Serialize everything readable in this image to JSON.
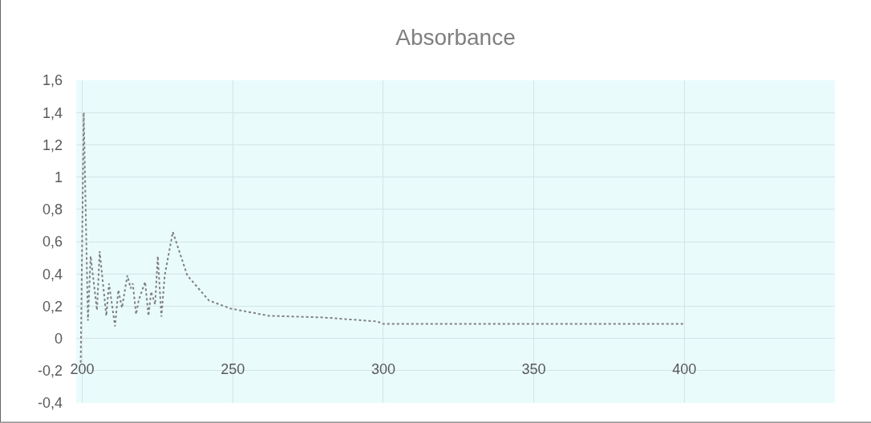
{
  "chart_data": {
    "type": "line",
    "title": "Absorbance",
    "x": [
      199.5,
      200.5,
      201.9,
      202.8,
      204.9,
      205.8,
      208,
      208.9,
      210.9,
      212,
      213.2,
      215,
      216.1,
      216.8,
      217.9,
      218.8,
      220.9,
      222,
      222.9,
      224.2,
      225.1,
      226.3,
      227.4,
      230.1,
      234.9,
      242.1,
      249.3,
      262,
      280,
      298,
      300,
      400
    ],
    "series": [
      {
        "color": "#7f7f7f",
        "values": [
          -0.15,
          1.4,
          0.11,
          0.51,
          0.175,
          0.54,
          0.14,
          0.34,
          0.075,
          0.3,
          0.19,
          0.39,
          0.31,
          0.34,
          0.15,
          0.24,
          0.35,
          0.14,
          0.29,
          0.21,
          0.51,
          0.135,
          0.39,
          0.66,
          0.39,
          0.235,
          0.185,
          0.14,
          0.13,
          0.105,
          0.09,
          0.09
        ]
      }
    ],
    "xlim": [
      198,
      450
    ],
    "xticks": [
      200,
      250,
      300,
      350,
      400
    ],
    "ylim": [
      -0.4,
      1.6
    ],
    "yticks": [
      {
        "value": -0.4,
        "label": "-0,4"
      },
      {
        "value": -0.2,
        "label": "-0,2"
      },
      0,
      {
        "value": 0.2,
        "label": "0,2"
      },
      {
        "value": 0.4,
        "label": "0,4"
      },
      {
        "value": 0.6,
        "label": "0,6"
      },
      {
        "value": 0.8,
        "label": "0,8"
      },
      1,
      {
        "value": 1.2,
        "label": "1,2"
      },
      {
        "value": 1.4,
        "label": "1,4"
      },
      {
        "value": 1.6,
        "label": "1,6"
      }
    ],
    "grid": true,
    "marker": "none",
    "line_style": "dotted"
  }
}
